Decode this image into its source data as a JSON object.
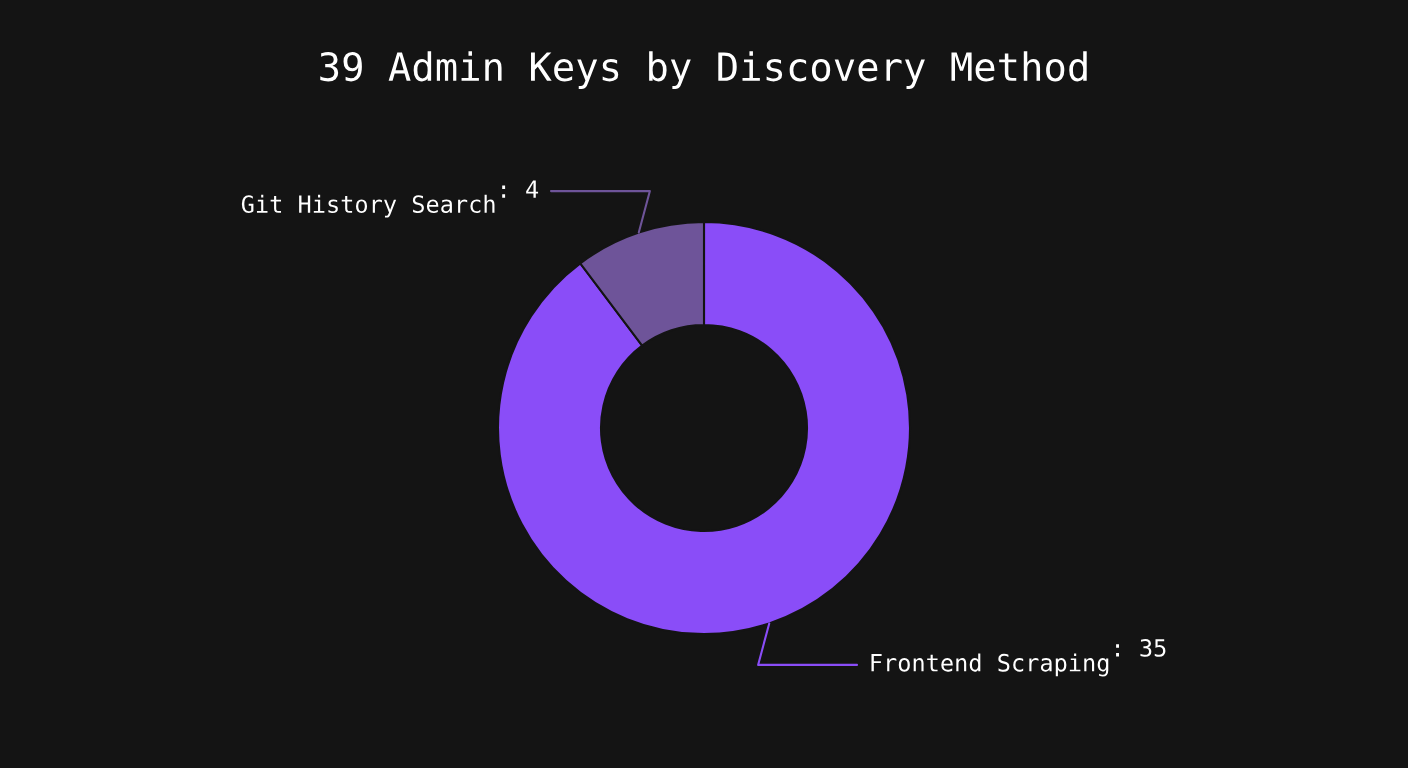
{
  "chart_data": {
    "type": "donut",
    "title": "39 Admin Keys by Discovery Method",
    "categories": [
      "Frontend Scraping",
      "Git History Search"
    ],
    "values": [
      35,
      4
    ],
    "colors": [
      "#8a4df8",
      "#6e5499"
    ],
    "value_labels": [
      ": 35",
      ": 4"
    ],
    "legend": false
  }
}
